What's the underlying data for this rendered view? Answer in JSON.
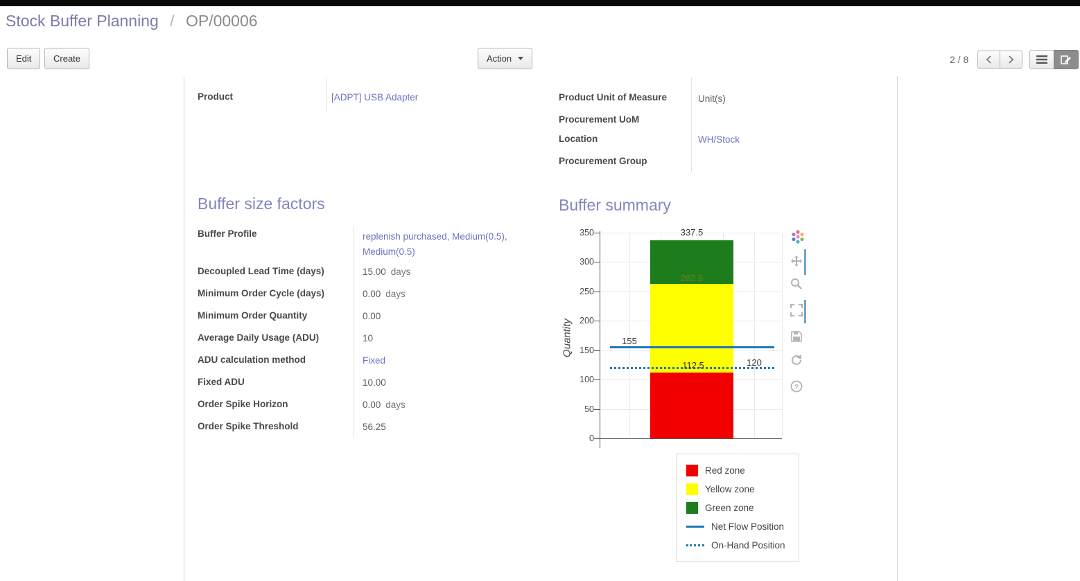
{
  "theme": {
    "accent": "#7c7bad",
    "link_color": "#6e71c2",
    "heading_color": "#8486bd"
  },
  "breadcrumb": {
    "parent": "Stock Buffer Planning",
    "separator": "/",
    "current": "OP/00006"
  },
  "toolbar": {
    "edit_label": "Edit",
    "create_label": "Create",
    "action_label": "Action",
    "pager": "2 / 8",
    "icons": {
      "action_caret": "caret-down-icon",
      "pager_previous": "chevron-left-icon",
      "pager_next": "chevron-right-icon",
      "view_list": "list-view-icon",
      "view_form": "form-view-icon"
    }
  },
  "form": {
    "left_fields": [
      {
        "label": "Product",
        "value": "[ADPT] USB Adapter",
        "link": true
      }
    ],
    "right_fields": [
      {
        "label": "Product Unit of Measure",
        "value": "Unit(s)",
        "link": false
      },
      {
        "label": "Procurement UoM",
        "value": "",
        "link": false
      },
      {
        "label": "Location",
        "value": "WH/Stock",
        "link": true
      },
      {
        "label": "Procurement Group",
        "value": "",
        "link": false
      }
    ],
    "buffer_factors": {
      "title": "Buffer size factors",
      "fields": [
        {
          "label": "Buffer Profile",
          "value": "replenish purchased, Medium(0.5), Medium(0.5)",
          "link": true
        },
        {
          "label": "Decoupled Lead Time (days)",
          "value": "15.00",
          "suffix": "days"
        },
        {
          "label": "Minimum Order Cycle (days)",
          "value": "0.00",
          "suffix": "days"
        },
        {
          "label": "Minimum Order Quantity",
          "value": "0.00"
        },
        {
          "label": "Average Daily Usage (ADU)",
          "value": "10"
        },
        {
          "label": "ADU calculation method",
          "value": "Fixed",
          "link": true
        },
        {
          "label": "Fixed ADU",
          "value": "10.00"
        },
        {
          "label": "Order Spike Horizon",
          "value": "0.00",
          "suffix": "days"
        },
        {
          "label": "Order Spike Threshold",
          "value": "56.25"
        }
      ]
    },
    "buffer_summary": {
      "title": "Buffer summary"
    }
  },
  "chart_data": {
    "type": "bar",
    "title": "",
    "xlabel": "",
    "ylabel": "Quantity",
    "ylim": [
      0,
      350
    ],
    "yticks": [
      0,
      50,
      100,
      150,
      200,
      250,
      300,
      350
    ],
    "grid": true,
    "legend_position": "bottom-right",
    "series": [
      {
        "name": "Red zone",
        "from": 0,
        "to": 112.5,
        "color": "#f20000"
      },
      {
        "name": "Yellow zone",
        "from": 112.5,
        "to": 262.5,
        "color": "#ffff00"
      },
      {
        "name": "Green zone",
        "from": 262.5,
        "to": 337.5,
        "color": "#1d7d1d"
      }
    ],
    "lines": [
      {
        "name": "Net Flow Position",
        "value": 155,
        "dash": "solid",
        "color": "#1f77b4"
      },
      {
        "name": "On-Hand Position",
        "value": 120,
        "dash": "dot",
        "color": "#1f77b4"
      }
    ],
    "annotations": [
      {
        "text": "337.5",
        "value": 337.5,
        "anchor": "bar-top"
      },
      {
        "text": "262.5",
        "value": 262.5,
        "anchor": "bar-inside",
        "color": "#6f7d1c"
      },
      {
        "text": "155",
        "value": 155,
        "anchor": "line-left"
      },
      {
        "text": "112.5",
        "value": 120,
        "anchor": "line-center"
      },
      {
        "text": "120",
        "value": 120,
        "anchor": "line-right"
      }
    ],
    "legend": [
      {
        "label": "Red zone",
        "marker": "square",
        "color": "#f20000"
      },
      {
        "label": "Yellow zone",
        "marker": "square",
        "color": "#ffff00"
      },
      {
        "label": "Green zone",
        "marker": "square",
        "color": "#1d7d1d"
      },
      {
        "label": "Net Flow Position",
        "marker": "line",
        "color": "#1f77b4"
      },
      {
        "label": "On-Hand Position",
        "marker": "dotline",
        "color": "#1f77b4"
      }
    ]
  },
  "modebar": {
    "icons": [
      "plotly-logo-icon",
      "pan-icon",
      "zoom-icon",
      "autoscale-icon",
      "save-icon",
      "reset-view-icon",
      "help-icon"
    ]
  }
}
